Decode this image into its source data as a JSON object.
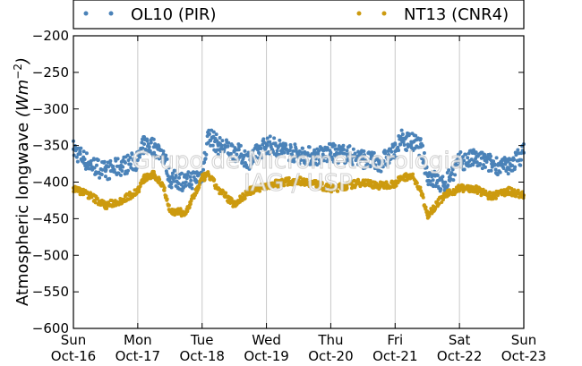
{
  "chart_data": {
    "type": "scatter",
    "ylabel": "Atmospheric longwave (Wm^-2)",
    "ylabel_main": "Atmospheric longwave ",
    "ylabel_unit": "Wm",
    "ylabel_exp": "−2",
    "ylim": [
      -600,
      -200
    ],
    "yticks": [
      -200,
      -250,
      -300,
      -350,
      -400,
      -450,
      -500,
      -550,
      -600
    ],
    "xlim": [
      0,
      7
    ],
    "xticks": [
      {
        "pos": 0,
        "day": "Sun",
        "date": "Oct-16"
      },
      {
        "pos": 1,
        "day": "Mon",
        "date": "Oct-17"
      },
      {
        "pos": 2,
        "day": "Tue",
        "date": "Oct-18"
      },
      {
        "pos": 3,
        "day": "Wed",
        "date": "Oct-19"
      },
      {
        "pos": 4,
        "day": "Thu",
        "date": "Oct-20"
      },
      {
        "pos": 5,
        "day": "Fri",
        "date": "Oct-21"
      },
      {
        "pos": 6,
        "day": "Sat",
        "date": "Oct-22"
      },
      {
        "pos": 7,
        "day": "Sun",
        "date": "Oct-23"
      }
    ],
    "grid": "vertical",
    "legend_position": "top",
    "watermark": [
      "Grupo de Micrometeorologia",
      "IAG / USP"
    ],
    "series": [
      {
        "name": "OL10 (PIR)",
        "color": "#4a82b8",
        "x": [
          0.0,
          0.25,
          0.5,
          0.75,
          1.0,
          1.1,
          1.25,
          1.4,
          1.5,
          1.75,
          2.0,
          2.1,
          2.25,
          2.5,
          2.75,
          3.0,
          3.25,
          3.5,
          3.75,
          4.0,
          4.25,
          4.5,
          4.75,
          5.0,
          5.1,
          5.25,
          5.4,
          5.5,
          5.75,
          6.0,
          6.25,
          6.5,
          6.75,
          7.0
        ],
        "y": [
          -355,
          -375,
          -385,
          -378,
          -370,
          -348,
          -352,
          -362,
          -395,
          -400,
          -390,
          -335,
          -350,
          -358,
          -370,
          -348,
          -355,
          -362,
          -365,
          -360,
          -362,
          -368,
          -375,
          -358,
          -342,
          -345,
          -352,
          -390,
          -405,
          -372,
          -368,
          -375,
          -380,
          -360
        ]
      },
      {
        "name": "NT13 (CNR4)",
        "color": "#cc9a0f",
        "x": [
          0.0,
          0.25,
          0.5,
          0.75,
          1.0,
          1.1,
          1.25,
          1.4,
          1.5,
          1.75,
          2.0,
          2.1,
          2.25,
          2.5,
          2.75,
          3.0,
          3.25,
          3.5,
          3.75,
          4.0,
          4.25,
          4.5,
          4.75,
          5.0,
          5.1,
          5.25,
          5.4,
          5.5,
          5.75,
          6.0,
          6.25,
          6.5,
          6.75,
          7.0
        ],
        "y": [
          -408,
          -418,
          -432,
          -425,
          -412,
          -395,
          -390,
          -405,
          -440,
          -442,
          -395,
          -390,
          -410,
          -430,
          -412,
          -405,
          -400,
          -398,
          -402,
          -410,
          -405,
          -400,
          -405,
          -402,
          -395,
          -390,
          -412,
          -445,
          -420,
          -408,
          -410,
          -420,
          -412,
          -418
        ]
      }
    ]
  }
}
